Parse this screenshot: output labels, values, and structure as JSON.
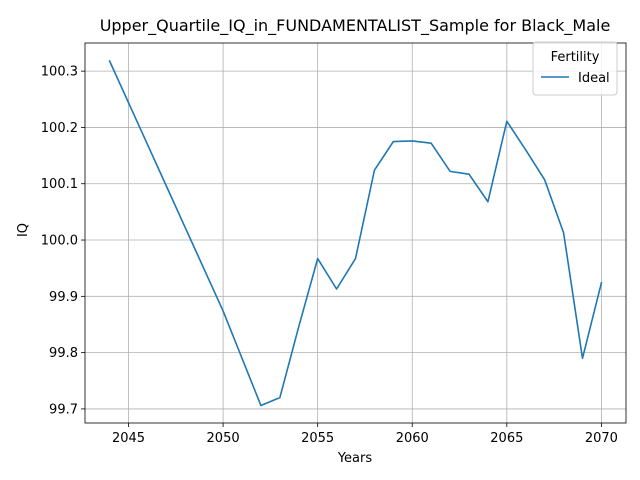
{
  "chart_data": {
    "type": "line",
    "title": "Upper_Quartile_IQ_in_FUNDAMENTALIST_Sample for Black_Male",
    "xlabel": "Years",
    "ylabel": "IQ",
    "xlim": [
      2042.7,
      2071.3
    ],
    "ylim": [
      99.675,
      100.35
    ],
    "xticks": [
      2045,
      2050,
      2055,
      2060,
      2065,
      2070
    ],
    "yticks": [
      99.7,
      99.8,
      99.9,
      100.0,
      100.1,
      100.2,
      100.3
    ],
    "ytick_labels": [
      "99.7",
      "99.8",
      "99.9",
      "100.0",
      "100.1",
      "100.2",
      "100.3"
    ],
    "grid": true,
    "legend": {
      "title": "Fertility",
      "placement": "top-right"
    },
    "series": [
      {
        "name": "Ideal",
        "color": "#1f77b4",
        "x": [
          2044,
          2045,
          2046,
          2047,
          2048,
          2049,
          2050,
          2051,
          2052,
          2053,
          2054,
          2055,
          2056,
          2057,
          2058,
          2059,
          2060,
          2061,
          2062,
          2063,
          2064,
          2065,
          2066,
          2067,
          2068,
          2069,
          2070
        ],
        "y": [
          100.318,
          100.244,
          100.17,
          100.096,
          100.022,
          99.948,
          99.874,
          99.79,
          99.706,
          99.72,
          99.846,
          99.967,
          99.913,
          99.967,
          100.124,
          100.175,
          100.176,
          100.172,
          100.122,
          100.117,
          100.068,
          100.211,
          100.16,
          100.107,
          100.013,
          99.79,
          99.924
        ]
      }
    ]
  }
}
